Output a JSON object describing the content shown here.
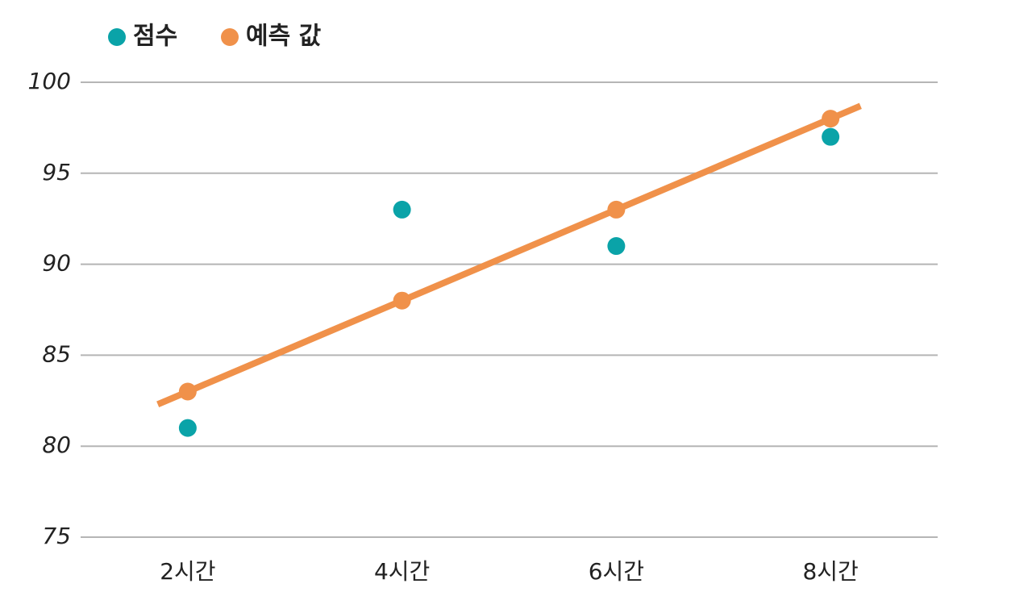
{
  "chart_data": {
    "type": "scatter",
    "categories": [
      "2시간",
      "4시간",
      "6시간",
      "8시간"
    ],
    "series": [
      {
        "name": "점수",
        "color": "#0aa3a8",
        "style": "points",
        "values": [
          81,
          93,
          91,
          97
        ]
      },
      {
        "name": "예측 값",
        "color": "#f0914a",
        "style": "line-points",
        "values": [
          83,
          88,
          93,
          98
        ]
      }
    ],
    "ylim": [
      75,
      100
    ],
    "yticks": [
      75,
      80,
      85,
      90,
      95,
      100
    ],
    "grid": true,
    "legend": "top-left"
  }
}
